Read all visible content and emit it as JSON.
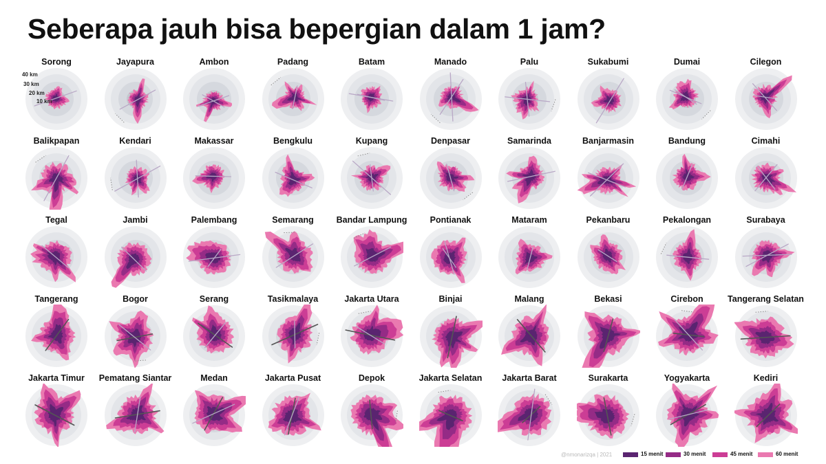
{
  "title": "Seberapa jauh bisa bepergian dalam 1 jam?",
  "scale_labels": [
    "40 km",
    "30 km",
    "20 km",
    "10 km"
  ],
  "cities": [
    "Sorong",
    "Jayapura",
    "Ambon",
    "Padang",
    "Batam",
    "Manado",
    "Palu",
    "Sukabumi",
    "Dumai",
    "Cilegon",
    "Balikpapan",
    "Kendari",
    "Makassar",
    "Bengkulu",
    "Kupang",
    "Denpasar",
    "Samarinda",
    "Banjarmasin",
    "Bandung",
    "Cimahi",
    "Tegal",
    "Jambi",
    "Palembang",
    "Semarang",
    "Bandar Lampung",
    "Pontianak",
    "Mataram",
    "Pekanbaru",
    "Pekalongan",
    "Surabaya",
    "Tangerang",
    "Bogor",
    "Serang",
    "Tasikmalaya",
    "Jakarta Utara",
    "Binjai",
    "Malang",
    "Bekasi",
    "Cirebon",
    "Tangerang Selatan",
    "Jakarta Timur",
    "Pematang Siantar",
    "Medan",
    "Jakarta Pusat",
    "Depok",
    "Jakarta Selatan",
    "Jakarta Barat",
    "Surakarta",
    "Yogyakarta",
    "Kediri"
  ],
  "credit": "@nmonarizqa | 2021",
  "legend": [
    {
      "label": "15 menit",
      "color": "#5a2470"
    },
    {
      "label": "30 menit",
      "color": "#952b86"
    },
    {
      "label": "45 menit",
      "color": "#cc3d95"
    },
    {
      "label": "60 menit",
      "color": "#ea79b0"
    }
  ],
  "colors": {
    "ring_outer": "#eeeff1",
    "ring_2": "#e3e5e9",
    "ring_3": "#d5d8de",
    "ring_inner": "#c3c7ce",
    "road": "#666666",
    "water": "#8a8a8a"
  }
}
